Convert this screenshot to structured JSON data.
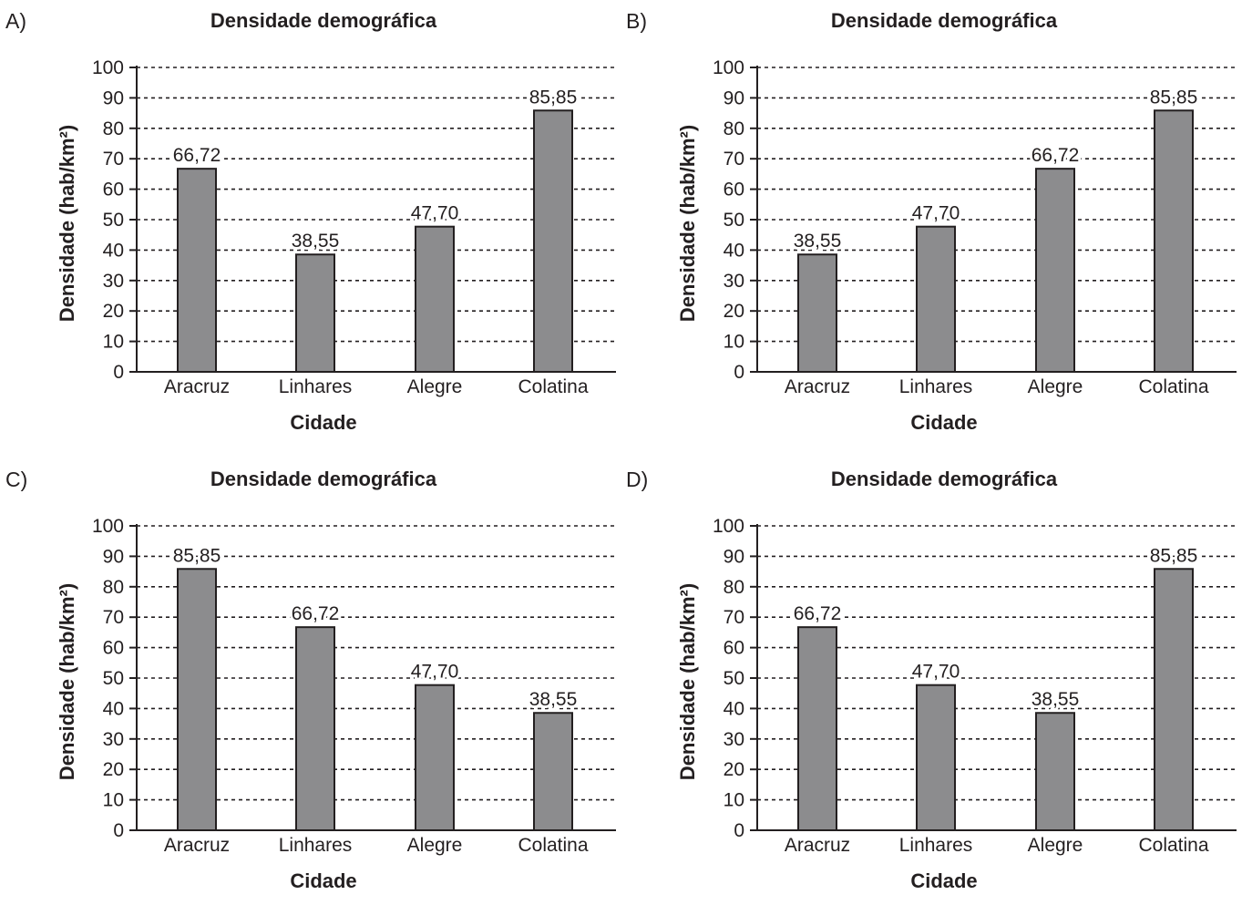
{
  "charts_common": {
    "title": "Densidade demográfica",
    "ylabel": "Densidade (hab/km²)",
    "xlabel": "Cidade",
    "yticks": [
      "0",
      "10",
      "20",
      "30",
      "40",
      "50",
      "60",
      "70",
      "80",
      "90",
      "100"
    ]
  },
  "chart_data": [
    {
      "type": "bar",
      "option_label": "A)",
      "title": "Densidade demográfica",
      "xlabel": "Cidade",
      "ylabel": "Densidade (hab/km²)",
      "ylim": [
        0,
        100
      ],
      "grid": true,
      "categories": [
        "Aracruz",
        "Linhares",
        "Alegre",
        "Colatina"
      ],
      "values": [
        66.72,
        38.55,
        47.7,
        85.85
      ],
      "value_labels": [
        "66,72",
        "38,55",
        "47,70",
        "85,85"
      ]
    },
    {
      "type": "bar",
      "option_label": "B)",
      "title": "Densidade demográfica",
      "xlabel": "Cidade",
      "ylabel": "Densidade (hab/km²)",
      "ylim": [
        0,
        100
      ],
      "grid": true,
      "categories": [
        "Aracruz",
        "Linhares",
        "Alegre",
        "Colatina"
      ],
      "values": [
        38.55,
        47.7,
        66.72,
        85.85
      ],
      "value_labels": [
        "38,55",
        "47,70",
        "66,72",
        "85,85"
      ]
    },
    {
      "type": "bar",
      "option_label": "C)",
      "title": "Densidade demográfica",
      "xlabel": "Cidade",
      "ylabel": "Densidade (hab/km²)",
      "ylim": [
        0,
        100
      ],
      "grid": true,
      "categories": [
        "Aracruz",
        "Linhares",
        "Alegre",
        "Colatina"
      ],
      "values": [
        85.85,
        66.72,
        47.7,
        38.55
      ],
      "value_labels": [
        "85,85",
        "66,72",
        "47,70",
        "38,55"
      ]
    },
    {
      "type": "bar",
      "option_label": "D)",
      "title": "Densidade demográfica",
      "xlabel": "Cidade",
      "ylabel": "Densidade (hab/km²)",
      "ylim": [
        0,
        100
      ],
      "grid": true,
      "categories": [
        "Aracruz",
        "Linhares",
        "Alegre",
        "Colatina"
      ],
      "values": [
        66.72,
        47.7,
        38.55,
        85.85
      ],
      "value_labels": [
        "66,72",
        "47,70",
        "38,55",
        "85,85"
      ]
    }
  ],
  "colors": {
    "bar_fill": "#8c8c8e",
    "bar_stroke": "#231f20",
    "text": "#231f20",
    "grid": "#231f20"
  }
}
